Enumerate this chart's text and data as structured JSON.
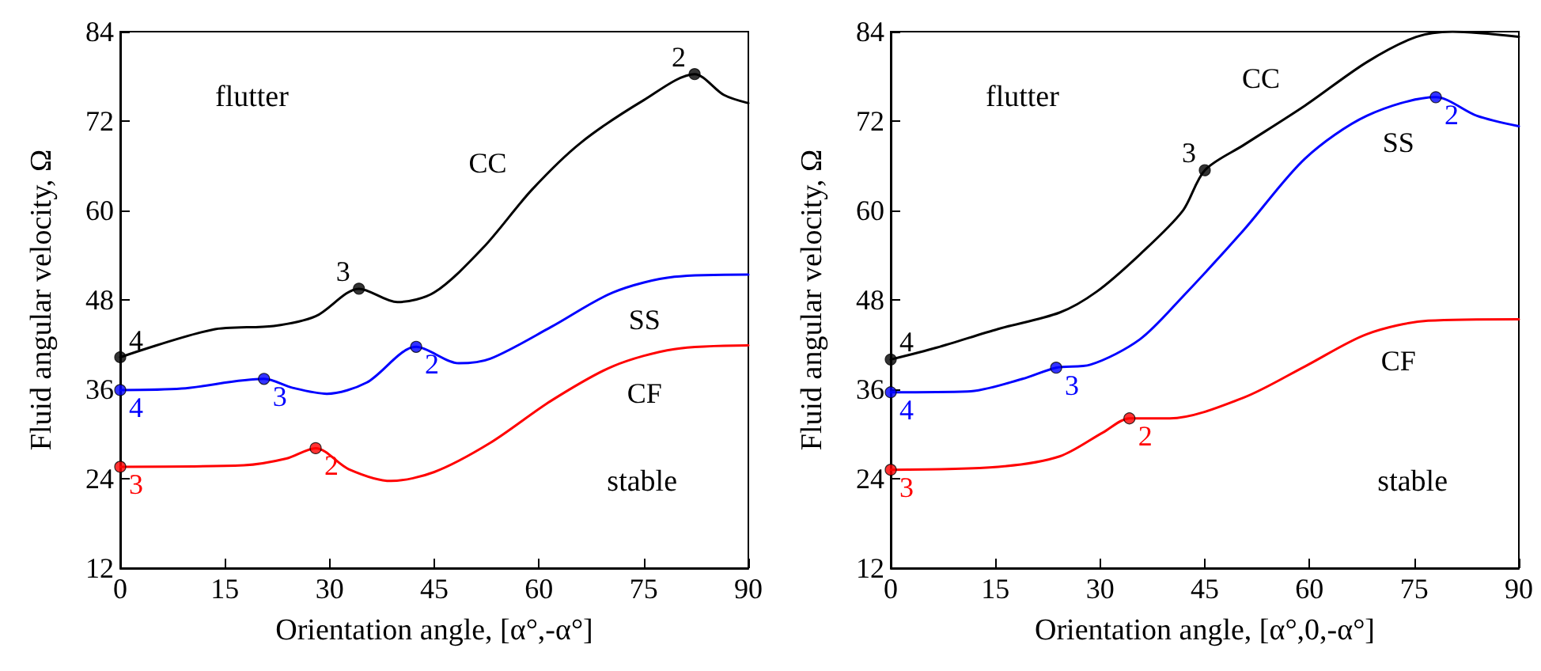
{
  "chart_data": [
    {
      "type": "line",
      "xlabel": "Orientation angle, [α°,-α°]",
      "ylabel": "Fluid angular velocity, Ω",
      "annotations": [
        "flutter",
        "stable",
        {
          "text": "4",
          "x": 0,
          "y": 40.3
        },
        {
          "text": "3",
          "x": 34.2,
          "y": 49.5
        },
        {
          "text": "2",
          "x": 82.3,
          "y": 78.3
        },
        {
          "text": "4",
          "x": 0,
          "y": 35.9
        },
        {
          "text": "3",
          "x": 20.6,
          "y": 37.4
        },
        {
          "text": "2",
          "x": 42.4,
          "y": 41.7
        },
        {
          "text": "3",
          "x": 0,
          "y": 25.6
        },
        {
          "text": "2",
          "x": 28,
          "y": 28.1
        }
      ],
      "xlim": [
        0,
        90
      ],
      "xticks": [
        0,
        15,
        30,
        45,
        60,
        75,
        90
      ],
      "ylim": [
        12,
        84
      ],
      "yticks": [
        12,
        24,
        36,
        48,
        60,
        72,
        84
      ],
      "grid": false,
      "legend": false,
      "marker": "none",
      "line_style": "solid",
      "series": [
        {
          "name": "CC",
          "color": "#000000",
          "x": [
            0,
            13.2,
            22,
            28,
            34.2,
            39.7,
            45,
            52,
            59,
            66,
            75,
            82.3,
            86.5,
            90
          ],
          "values": [
            40.3,
            44,
            44.5,
            45.8,
            49.5,
            47.7,
            49,
            55,
            62.8,
            69.1,
            74.8,
            78.3,
            75.5,
            74.4
          ]
        },
        {
          "name": "SS",
          "color": "#0000ff",
          "x": [
            0,
            8.8,
            20.6,
            24.7,
            29.6,
            35.3,
            42.4,
            48.5,
            53,
            61.8,
            70.6,
            79.4,
            90
          ],
          "values": [
            35.9,
            36.1,
            37.4,
            36.2,
            35.4,
            36.9,
            41.7,
            39.5,
            40.1,
            44.4,
            49,
            51.1,
            51.4
          ]
        },
        {
          "name": "CF",
          "color": "#ff0000",
          "x": [
            0,
            17.7,
            23.8,
            28,
            32.7,
            38.8,
            45,
            53,
            61.8,
            70.6,
            79.4,
            90
          ],
          "values": [
            25.6,
            25.8,
            26.7,
            28.1,
            25.3,
            23.7,
            24.9,
            28.8,
            34.5,
            39.1,
            41.4,
            41.9
          ]
        },
        {
          "type": "scatter",
          "marker": "circle",
          "color": "#000000",
          "x": [
            0,
            34.2,
            82.3
          ],
          "values": [
            40.3,
            49.5,
            78.3
          ]
        },
        {
          "type": "scatter",
          "marker": "circle",
          "color": "#0000ff",
          "x": [
            0,
            20.6,
            42.4
          ],
          "values": [
            35.9,
            37.4,
            41.7
          ]
        },
        {
          "type": "scatter",
          "marker": "circle",
          "color": "#ff0000",
          "x": [
            0,
            28
          ],
          "values": [
            25.6,
            28.1
          ]
        }
      ]
    },
    {
      "type": "line",
      "xlabel": "Orientation angle, [α°,0,-α°]",
      "ylabel": "Fluid angular velocity, Ω",
      "annotations": [
        "flutter",
        "stable",
        {
          "text": "4",
          "x": 0,
          "y": 40
        },
        {
          "text": "3",
          "x": 45,
          "y": 65.4
        },
        {
          "text": "4",
          "x": 0,
          "y": 35.6
        },
        {
          "text": "3",
          "x": 23.7,
          "y": 38.9
        },
        {
          "text": "2",
          "x": 78.1,
          "y": 75.2
        },
        {
          "text": "3",
          "x": 0,
          "y": 25.2
        },
        {
          "text": "2",
          "x": 34.2,
          "y": 32.1
        }
      ],
      "xlim": [
        0,
        90
      ],
      "xticks": [
        0,
        15,
        30,
        45,
        60,
        75,
        90
      ],
      "ylim": [
        12,
        84
      ],
      "yticks": [
        12,
        24,
        36,
        48,
        60,
        72,
        84
      ],
      "grid": false,
      "legend": false,
      "marker": "none",
      "line_style": "solid",
      "series": [
        {
          "name": "CC",
          "color": "#000000",
          "x": [
            0,
            6.6,
            15.4,
            24.2,
            29.5,
            35.7,
            41.8,
            45,
            50.6,
            59.4,
            68.2,
            75.3,
            80.5,
            90
          ],
          "values": [
            40,
            41.6,
            44.1,
            46.3,
            49.1,
            54.1,
            59.9,
            65.4,
            68.8,
            74.1,
            79.9,
            83.3,
            84,
            83.3
          ]
        },
        {
          "name": "SS",
          "color": "#0000ff",
          "x": [
            0,
            11,
            18.9,
            23.7,
            28.6,
            35.7,
            41.8,
            50.6,
            59.4,
            68.2,
            78.1,
            84,
            90
          ],
          "values": [
            35.6,
            35.7,
            37.4,
            38.9,
            39.3,
            42.7,
            48.4,
            57.4,
            67,
            72.7,
            75.2,
            72.7,
            71.3
          ]
        },
        {
          "name": "CF",
          "color": "#ff0000",
          "x": [
            0,
            15.4,
            24.2,
            30.4,
            34.2,
            40,
            50.6,
            59.4,
            68.2,
            77,
            90
          ],
          "values": [
            25.2,
            25.6,
            27,
            30.2,
            32.1,
            32.1,
            34.9,
            39.1,
            43.4,
            45.2,
            45.4
          ]
        },
        {
          "type": "scatter",
          "marker": "circle",
          "color": "#000000",
          "x": [
            0,
            45
          ],
          "values": [
            40,
            65.4
          ]
        },
        {
          "type": "scatter",
          "marker": "circle",
          "color": "#0000ff",
          "x": [
            0,
            23.7,
            78.1
          ],
          "values": [
            35.6,
            38.9,
            75.2
          ]
        },
        {
          "type": "scatter",
          "marker": "circle",
          "color": "#ff0000",
          "x": [
            0,
            34.2
          ],
          "values": [
            25.2,
            32.1
          ]
        }
      ]
    }
  ]
}
